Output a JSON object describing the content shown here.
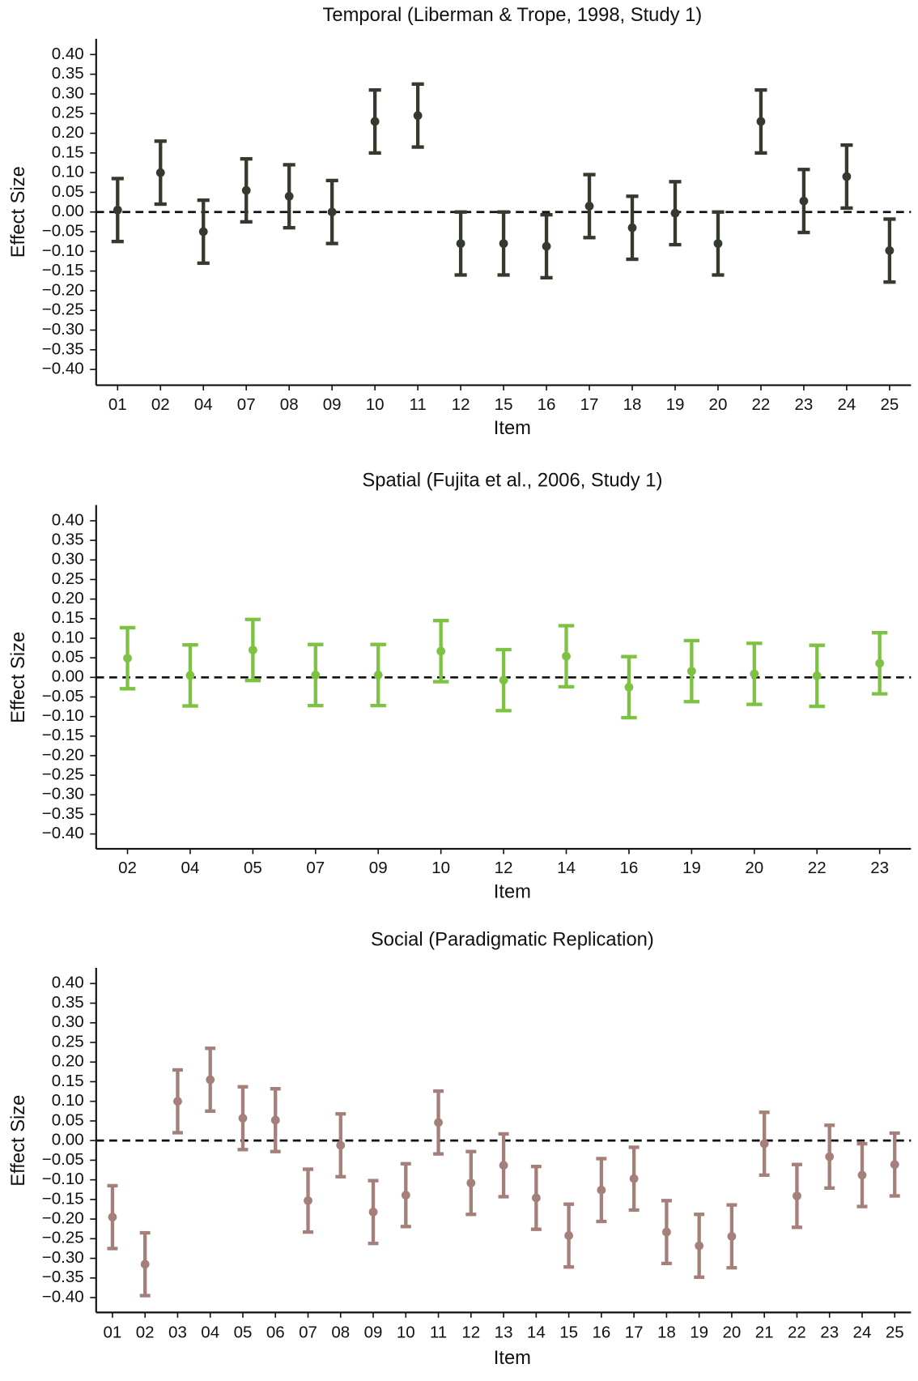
{
  "chart_data": [
    {
      "type": "errorbar",
      "title": "Temporal (Liberman & Trope, 1998, Study 1)",
      "xlabel": "Item",
      "ylabel": "Effect Size",
      "categories": [
        "01",
        "02",
        "04",
        "07",
        "08",
        "09",
        "10",
        "11",
        "12",
        "15",
        "16",
        "17",
        "18",
        "19",
        "20",
        "22",
        "23",
        "24",
        "25"
      ],
      "values": [
        0.005,
        0.1,
        -0.05,
        0.055,
        0.04,
        0.0,
        0.23,
        0.245,
        -0.08,
        -0.08,
        -0.087,
        0.015,
        -0.04,
        -0.003,
        -0.08,
        0.23,
        0.028,
        0.09,
        -0.098
      ],
      "errors": [
        0.08,
        0.08,
        0.08,
        0.08,
        0.08,
        0.08,
        0.08,
        0.08,
        0.08,
        0.08,
        0.08,
        0.08,
        0.08,
        0.08,
        0.08,
        0.08,
        0.08,
        0.08,
        0.08
      ],
      "color": "#343a2d",
      "hline": 0,
      "ylim": [
        -0.4,
        0.4
      ],
      "yticks": [
        {
          "value": 0.4,
          "label": "0.40"
        },
        {
          "value": 0.35,
          "label": "0.35"
        },
        {
          "value": 0.3,
          "label": "0.30"
        },
        {
          "value": 0.25,
          "label": "0.25"
        },
        {
          "value": 0.2,
          "label": "0.20"
        },
        {
          "value": 0.15,
          "label": "0.15"
        },
        {
          "value": 0.1,
          "label": "0.10"
        },
        {
          "value": 0.05,
          "label": "0.05"
        },
        {
          "value": 0,
          "label": "0.00"
        },
        {
          "value": -0.05,
          "label": "−0.05"
        },
        {
          "value": -0.1,
          "label": "−0.10"
        },
        {
          "value": -0.15,
          "label": "−0.15"
        },
        {
          "value": -0.2,
          "label": "−0.20"
        },
        {
          "value": -0.25,
          "label": "−0.25"
        },
        {
          "value": -0.3,
          "label": "−0.30"
        },
        {
          "value": -0.35,
          "label": "−0.35"
        },
        {
          "value": -0.4,
          "label": "−0.40"
        }
      ]
    },
    {
      "type": "errorbar",
      "title": "Spatial (Fujita et al., 2006, Study 1)",
      "xlabel": "Item",
      "ylabel": "Effect Size",
      "categories": [
        "02",
        "04",
        "05",
        "07",
        "09",
        "10",
        "12",
        "14",
        "16",
        "19",
        "20",
        "22",
        "23"
      ],
      "values": [
        0.049,
        0.005,
        0.07,
        0.006,
        0.006,
        0.067,
        -0.007,
        0.054,
        -0.025,
        0.016,
        0.009,
        0.004,
        0.036
      ],
      "errors": [
        0.078,
        0.078,
        0.078,
        0.078,
        0.078,
        0.078,
        0.078,
        0.078,
        0.078,
        0.078,
        0.078,
        0.078,
        0.078
      ],
      "color": "#7dc243",
      "hline": 0,
      "ylim": [
        -0.4,
        0.4
      ],
      "yticks": [
        {
          "value": 0.4,
          "label": "0.40"
        },
        {
          "value": 0.35,
          "label": "0.35"
        },
        {
          "value": 0.3,
          "label": "0.30"
        },
        {
          "value": 0.25,
          "label": "0.25"
        },
        {
          "value": 0.2,
          "label": "0.20"
        },
        {
          "value": 0.15,
          "label": "0.15"
        },
        {
          "value": 0.1,
          "label": "0.10"
        },
        {
          "value": 0.05,
          "label": "0.05"
        },
        {
          "value": 0,
          "label": "0.00"
        },
        {
          "value": -0.05,
          "label": "−0.05"
        },
        {
          "value": -0.1,
          "label": "−0.10"
        },
        {
          "value": -0.15,
          "label": "−0.15"
        },
        {
          "value": -0.2,
          "label": "−0.20"
        },
        {
          "value": -0.25,
          "label": "−0.25"
        },
        {
          "value": -0.3,
          "label": "−0.30"
        },
        {
          "value": -0.35,
          "label": "−0.35"
        },
        {
          "value": -0.4,
          "label": "−0.40"
        }
      ]
    },
    {
      "type": "errorbar",
      "title": "Social (Paradigmatic Replication)",
      "xlabel": "Item",
      "ylabel": "Effect Size",
      "categories": [
        "01",
        "02",
        "03",
        "04",
        "05",
        "06",
        "07",
        "08",
        "09",
        "10",
        "11",
        "12",
        "13",
        "14",
        "15",
        "16",
        "17",
        "18",
        "19",
        "20",
        "21",
        "22",
        "23",
        "24",
        "25"
      ],
      "values": [
        -0.195,
        -0.315,
        0.1,
        0.155,
        0.057,
        0.052,
        -0.153,
        -0.012,
        -0.182,
        -0.139,
        0.046,
        -0.108,
        -0.063,
        -0.146,
        -0.242,
        -0.126,
        -0.097,
        -0.233,
        -0.268,
        -0.244,
        -0.008,
        -0.141,
        -0.041,
        -0.088,
        -0.061
      ],
      "errors": [
        0.08,
        0.08,
        0.08,
        0.08,
        0.08,
        0.08,
        0.08,
        0.08,
        0.08,
        0.08,
        0.08,
        0.08,
        0.08,
        0.08,
        0.08,
        0.08,
        0.08,
        0.08,
        0.08,
        0.08,
        0.08,
        0.08,
        0.08,
        0.08,
        0.08
      ],
      "color": "#a57f7a",
      "hline": 0,
      "ylim": [
        -0.4,
        0.4
      ],
      "yticks": [
        {
          "value": 0.4,
          "label": "0.40"
        },
        {
          "value": 0.35,
          "label": "0.35"
        },
        {
          "value": 0.3,
          "label": "0.30"
        },
        {
          "value": 0.25,
          "label": "0.25"
        },
        {
          "value": 0.2,
          "label": "0.20"
        },
        {
          "value": 0.15,
          "label": "0.15"
        },
        {
          "value": 0.1,
          "label": "0.10"
        },
        {
          "value": 0.05,
          "label": "0.05"
        },
        {
          "value": 0,
          "label": "0.00"
        },
        {
          "value": -0.05,
          "label": "−0.05"
        },
        {
          "value": -0.1,
          "label": "−0.10"
        },
        {
          "value": -0.15,
          "label": "−0.15"
        },
        {
          "value": -0.2,
          "label": "−0.20"
        },
        {
          "value": -0.25,
          "label": "−0.25"
        },
        {
          "value": -0.3,
          "label": "−0.30"
        },
        {
          "value": -0.35,
          "label": "−0.35"
        },
        {
          "value": -0.4,
          "label": "−0.40"
        }
      ]
    }
  ]
}
